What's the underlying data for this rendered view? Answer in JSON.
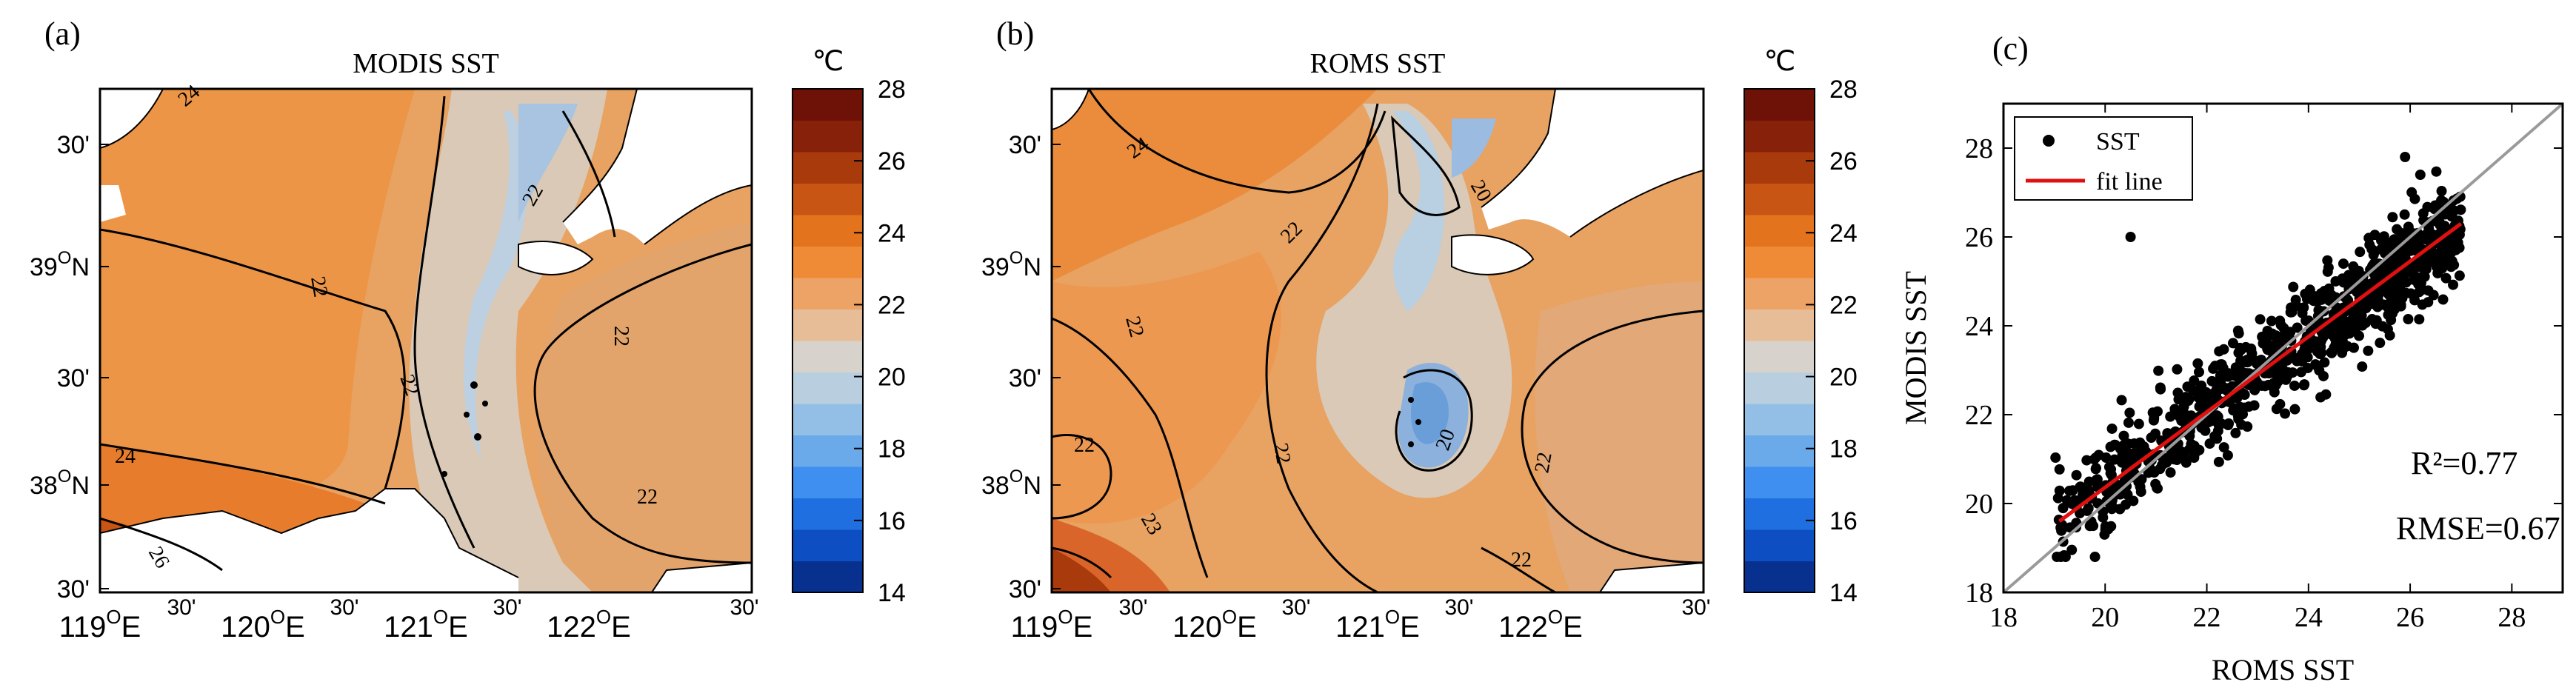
{
  "panels": [
    {
      "id": "a",
      "label": "(a)",
      "title": "MODIS SST",
      "unit": "℃",
      "colorbar_ticks": [
        "28",
        "26",
        "24",
        "22",
        "20",
        "18",
        "16",
        "14"
      ],
      "lat_labels": [
        "30'",
        "39ON",
        "30'",
        "38ON",
        "30'"
      ],
      "lon_labels": [
        "119OE",
        "30'",
        "120OE",
        "30'",
        "121OE",
        "30'",
        "122OE",
        "30'"
      ],
      "contour_labels": [
        "24",
        "22",
        "22",
        "22",
        "22",
        "24",
        "22",
        "26"
      ]
    },
    {
      "id": "b",
      "label": "(b)",
      "title": "ROMS SST",
      "unit": "℃",
      "colorbar_ticks": [
        "28",
        "26",
        "24",
        "22",
        "20",
        "18",
        "16",
        "14"
      ],
      "lat_labels": [
        "30'",
        "39ON",
        "30'",
        "38ON",
        "30'"
      ],
      "lon_labels": [
        "119OE",
        "30'",
        "120OE",
        "30'",
        "121OE",
        "30'",
        "122OE",
        "30'"
      ],
      "contour_labels": [
        "24",
        "22",
        "22",
        "20",
        "22",
        "22",
        "20",
        "22",
        "22",
        "23"
      ]
    }
  ],
  "colors": {
    "scale": [
      "#08308f",
      "#0d4fc2",
      "#1f6fe0",
      "#3f8ff0",
      "#6aa9ea",
      "#93bfe6",
      "#b9cfe0",
      "#d7d2cb",
      "#e7bd97",
      "#eda266",
      "#ef8a37",
      "#e4731d",
      "#c85513",
      "#a83a0c",
      "#87210a",
      "#6e1208"
    ],
    "land": "#ffffff",
    "contour": "#000000",
    "fit_line": "#e01010",
    "identity_line": "#9a9a9a",
    "points": "#000000"
  },
  "chart_data": [
    {
      "type": "heatmap",
      "panel": "a",
      "title": "MODIS SST",
      "unit": "℃",
      "color_range": [
        14,
        28
      ],
      "lon_range": [
        119,
        123
      ],
      "lat_range": [
        37.5,
        39.75
      ]
    },
    {
      "type": "heatmap",
      "panel": "b",
      "title": "ROMS SST",
      "unit": "℃",
      "color_range": [
        14,
        28
      ],
      "lon_range": [
        119,
        123
      ],
      "lat_range": [
        37.5,
        39.75
      ]
    },
    {
      "type": "scatter",
      "panel": "c",
      "label": "(c)",
      "xlabel": "ROMS SST",
      "ylabel": "MODIS SST",
      "xlim": [
        18,
        29
      ],
      "ylim": [
        18,
        29
      ],
      "xticks": [
        "18",
        "20",
        "22",
        "24",
        "26",
        "28"
      ],
      "yticks": [
        "18",
        "20",
        "22",
        "24",
        "26",
        "28"
      ],
      "legend": {
        "placement": "top-left",
        "entries": [
          "SST",
          "fit line"
        ]
      },
      "fit": {
        "x": [
          19.1,
          27.0
        ],
        "y": [
          19.6,
          26.3
        ]
      },
      "identity": {
        "x": [
          18,
          29
        ],
        "y": [
          18,
          29
        ]
      },
      "stats": {
        "r2": "R²=0.77",
        "rmse": "RMSE=0.67"
      },
      "point_cloud": {
        "x_range": [
          19.0,
          27.0
        ],
        "y_range": [
          18.8,
          27.8
        ],
        "n_rendered": 900
      }
    }
  ]
}
